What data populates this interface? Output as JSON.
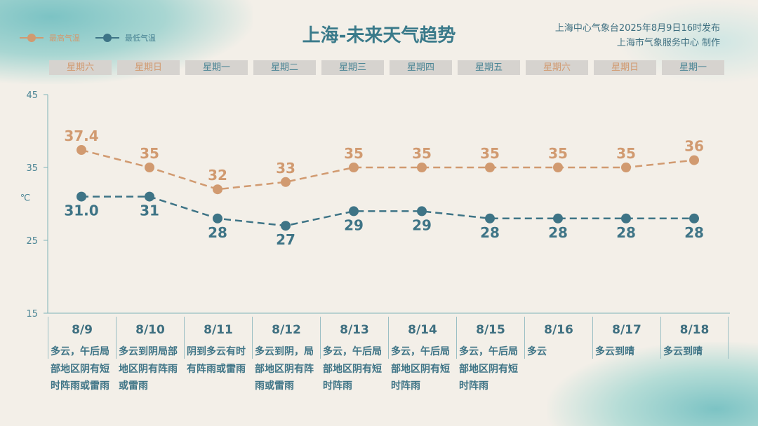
{
  "title": "上海-未来天气趋势",
  "issuer": {
    "line1": "上海中心气象台2025年8月9日16时发布",
    "line2": "上海市气象服务中心 制作"
  },
  "colors": {
    "high": "#d19a70",
    "low": "#3e7486",
    "weekend": "#d19a70",
    "weekday": "#4b8595"
  },
  "chart_data": {
    "type": "line",
    "ylabel": "℃",
    "ylim": [
      15,
      45
    ],
    "yticks": [
      "15",
      "25",
      "35",
      "45"
    ],
    "categories": [
      "8/9",
      "8/10",
      "8/11",
      "8/12",
      "8/13",
      "8/14",
      "8/15",
      "8/16",
      "8/17",
      "8/18"
    ],
    "weekdays": [
      "星期六",
      "星期日",
      "星期一",
      "星期二",
      "星期三",
      "星期四",
      "星期五",
      "星期六",
      "星期日",
      "星期一"
    ],
    "weekend": [
      true,
      true,
      false,
      false,
      false,
      false,
      false,
      true,
      true,
      false
    ],
    "weather": [
      "多云，午后局部地区阴有短时阵雨或雷雨",
      "多云到阴局部地区阴有阵雨或雷雨",
      "阴到多云有时有阵雨或雷雨",
      "多云到阴，局部地区阴有阵雨或雷雨",
      "多云，午后局部地区阴有短时阵雨",
      "多云，午后局部地区阴有短时阵雨",
      "多云，午后局部地区阴有短时阵雨",
      "多云",
      "多云到晴",
      "多云到晴"
    ],
    "series": [
      {
        "name": "最高气温",
        "values": [
          37.4,
          35,
          32,
          33,
          35,
          35,
          35,
          35,
          35,
          36
        ],
        "labels": [
          "37.4",
          "35",
          "32",
          "33",
          "35",
          "35",
          "35",
          "35",
          "35",
          "36"
        ]
      },
      {
        "name": "最低气温",
        "values": [
          31.0,
          31,
          28,
          27,
          29,
          29,
          28,
          28,
          28,
          28
        ],
        "labels": [
          "31.0",
          "31",
          "28",
          "27",
          "29",
          "29",
          "28",
          "28",
          "28",
          "28"
        ]
      }
    ],
    "legend": "top-left"
  }
}
